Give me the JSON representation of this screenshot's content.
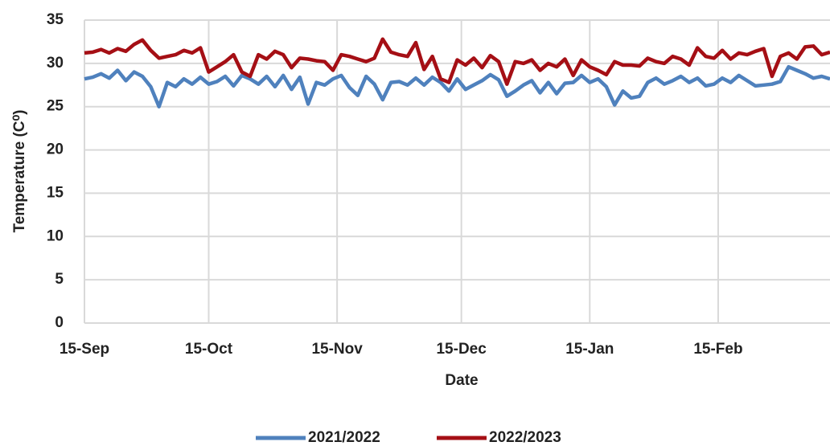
{
  "chart_data": {
    "type": "line",
    "x_label": "Date",
    "y_label": "Temperature (C⁰)",
    "x": [
      0,
      2,
      4,
      6,
      8,
      10,
      12,
      14,
      16,
      18,
      20,
      22,
      24,
      26,
      28,
      30,
      32,
      34,
      36,
      38,
      40,
      42,
      44,
      46,
      48,
      50,
      52,
      54,
      56,
      58,
      60,
      62,
      64,
      66,
      68,
      70,
      72,
      74,
      76,
      78,
      80,
      82,
      84,
      86,
      88,
      90,
      92,
      94,
      96,
      98,
      100,
      102,
      104,
      106,
      108,
      110,
      112,
      114,
      116,
      118,
      120,
      122,
      124,
      126,
      128,
      130,
      132,
      134,
      136,
      138,
      140,
      142,
      144,
      146,
      148,
      150,
      152,
      154,
      156,
      158,
      160,
      162,
      164,
      166,
      168,
      170,
      172,
      174,
      176,
      178,
      180
    ],
    "xlim": [
      0,
      180
    ],
    "xticks": [
      {
        "value": 0,
        "label": "15-Sep"
      },
      {
        "value": 30,
        "label": "15-Oct"
      },
      {
        "value": 61,
        "label": "15-Nov"
      },
      {
        "value": 91,
        "label": "15-Dec"
      },
      {
        "value": 122,
        "label": "15-Jan"
      },
      {
        "value": 153,
        "label": "15-Feb"
      }
    ],
    "ylim": [
      0,
      35
    ],
    "yticks": [
      0,
      5,
      10,
      15,
      20,
      25,
      30,
      35
    ],
    "grid": true,
    "legend": "bottom",
    "series": [
      {
        "name": "2021/2022",
        "color": "#4f81bd",
        "values": [
          28.2,
          28.4,
          28.8,
          28.3,
          29.2,
          28.0,
          29.0,
          28.5,
          27.3,
          25.0,
          27.8,
          27.3,
          28.2,
          27.6,
          28.4,
          27.6,
          27.9,
          28.5,
          27.4,
          28.6,
          28.2,
          27.6,
          28.5,
          27.3,
          28.6,
          27.0,
          28.4,
          25.3,
          27.8,
          27.5,
          28.2,
          28.6,
          27.2,
          26.3,
          28.5,
          27.6,
          25.8,
          27.8,
          27.9,
          27.5,
          28.3,
          27.5,
          28.4,
          27.8,
          26.8,
          28.2,
          27.0,
          27.5,
          28.0,
          28.7,
          28.1,
          26.2,
          26.8,
          27.5,
          28.0,
          26.6,
          27.8,
          26.5,
          27.7,
          27.8,
          28.6,
          27.8,
          28.2,
          27.3,
          25.2,
          26.8,
          26.0,
          26.2,
          27.8,
          28.3,
          27.6,
          28.0,
          28.5,
          27.8,
          28.3,
          27.4,
          27.6,
          28.3,
          27.8,
          28.6,
          28.0,
          27.4,
          27.5,
          27.6,
          27.9,
          29.6,
          29.2,
          28.8,
          28.3,
          28.5,
          28.2
        ]
      },
      {
        "name": "2022/2023",
        "color": "#a50f15",
        "values": [
          31.2,
          31.3,
          31.6,
          31.2,
          31.7,
          31.4,
          32.2,
          32.7,
          31.5,
          30.6,
          30.8,
          31.0,
          31.5,
          31.2,
          31.8,
          29.0,
          29.6,
          30.2,
          31.0,
          29.0,
          28.5,
          31.0,
          30.5,
          31.4,
          31.0,
          29.5,
          30.6,
          30.5,
          30.3,
          30.2,
          29.2,
          31.0,
          30.8,
          30.5,
          30.2,
          30.6,
          32.8,
          31.3,
          31.0,
          30.8,
          32.4,
          29.3,
          30.8,
          28.2,
          27.8,
          30.4,
          29.8,
          30.6,
          29.5,
          30.9,
          30.2,
          27.6,
          30.2,
          30.0,
          30.4,
          29.2,
          30.0,
          29.6,
          30.5,
          28.6,
          30.4,
          29.6,
          29.2,
          28.7,
          30.2,
          29.8,
          29.8,
          29.7,
          30.6,
          30.2,
          30.0,
          30.8,
          30.5,
          29.8,
          31.8,
          30.8,
          30.6,
          31.5,
          30.5,
          31.2,
          31.0,
          31.4,
          31.7,
          28.5,
          30.8,
          31.2,
          30.5,
          31.9,
          32.0,
          31.0,
          31.3
        ]
      }
    ]
  }
}
